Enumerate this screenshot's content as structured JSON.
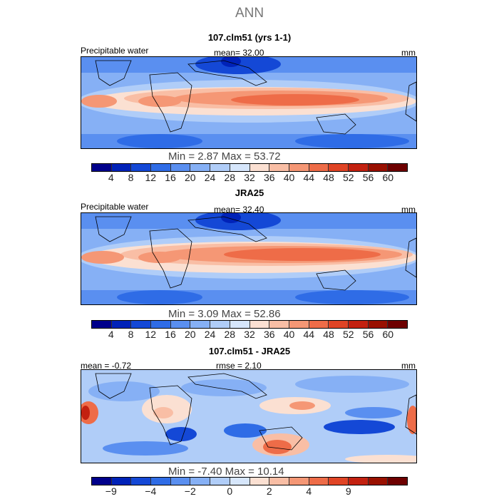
{
  "title": "ANN",
  "panels": [
    {
      "title": "107.clm51 (yrs 1-1)",
      "header_left": "Precipitable water",
      "header_mid": "mean=   32.00",
      "units": "mm",
      "min_max": "Min =    2.87  Max =  53.72",
      "type": "abs"
    },
    {
      "title": "JRA25",
      "header_left": "Precipitable water",
      "header_mid": "mean=   32.40",
      "units": "mm",
      "min_max": "Min =    3.09  Max =  52.86",
      "type": "abs"
    },
    {
      "title": "107.clm51 - JRA25",
      "header_left": "mean =   -0.72",
      "header_mid": "rmse =    2.10",
      "units": "mm",
      "min_max": "Min =   -7.40  Max =  10.14",
      "type": "diff"
    }
  ],
  "colorbar_abs": {
    "labels": [
      "4",
      "8",
      "12",
      "16",
      "20",
      "24",
      "28",
      "32",
      "36",
      "40",
      "44",
      "48",
      "52",
      "56",
      "60"
    ],
    "colors": [
      "#00008b",
      "#0022b8",
      "#1448d6",
      "#2f6ce6",
      "#5a8ff0",
      "#86b0f5",
      "#b0cdf8",
      "#d6e6fb",
      "#fbe0d2",
      "#f9bea5",
      "#f59775",
      "#ee6c48",
      "#e04425",
      "#c32110",
      "#991000",
      "#6e0000"
    ]
  },
  "colorbar_diff": {
    "labels": [
      "-9",
      "-4",
      "-2",
      "0",
      "2",
      "4",
      "9"
    ],
    "label_slots": [
      1,
      3,
      5,
      7,
      9,
      11,
      13
    ],
    "colors": [
      "#00008b",
      "#0022b8",
      "#1448d6",
      "#2f6ce6",
      "#5a8ff0",
      "#86b0f5",
      "#b0cdf8",
      "#d6e6fb",
      "#fbe0d2",
      "#f9bea5",
      "#f59775",
      "#ee6c48",
      "#e04425",
      "#c32110",
      "#991000",
      "#6e0000"
    ]
  }
}
